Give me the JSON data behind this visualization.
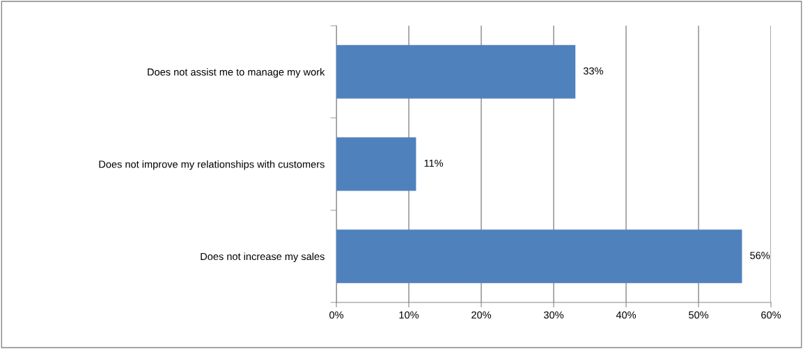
{
  "chart_data": {
    "type": "bar",
    "orientation": "horizontal",
    "categories": [
      "Does not assist me to manage my work",
      "Does not improve my relationships with customers",
      "Does not increase my sales"
    ],
    "values": [
      33,
      11,
      56
    ],
    "color": "#4f81bd",
    "value_labels": [
      "33%",
      "11%",
      "56%"
    ],
    "xlim": [
      0,
      60
    ],
    "xticks": [
      {
        "value": 0,
        "label": "0%"
      },
      {
        "value": 10,
        "label": "10%"
      },
      {
        "value": 20,
        "label": "20%"
      },
      {
        "value": 30,
        "label": "30%"
      },
      {
        "value": 40,
        "label": "40%"
      },
      {
        "value": 50,
        "label": "50%"
      },
      {
        "value": 60,
        "label": "60%"
      }
    ],
    "grid": "x",
    "legend": false
  }
}
